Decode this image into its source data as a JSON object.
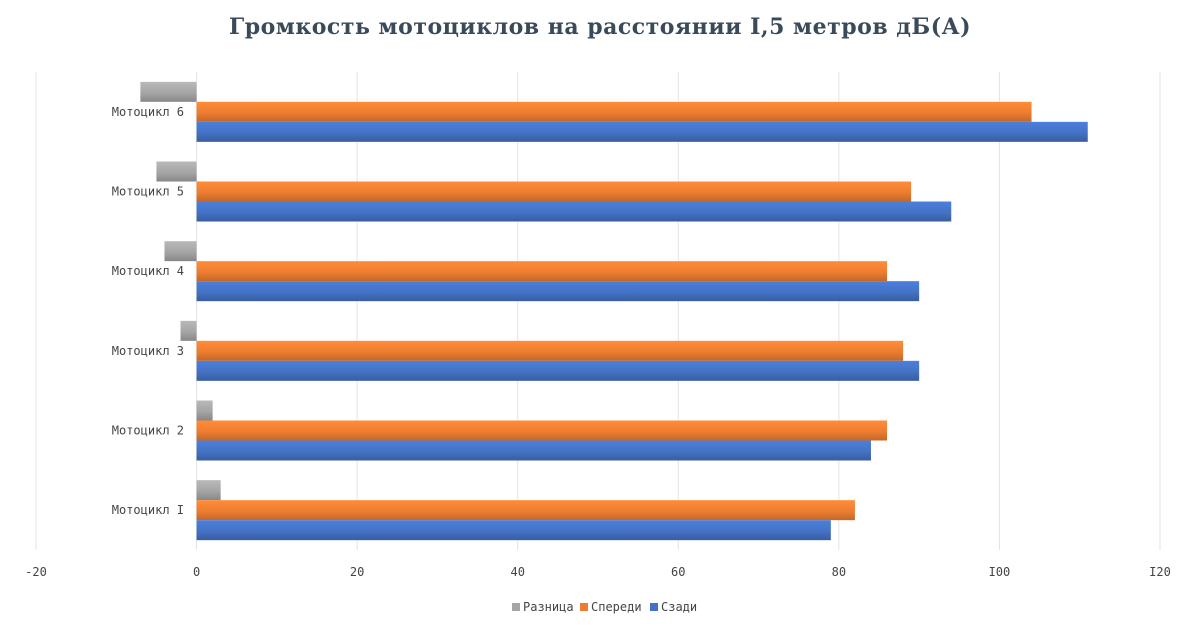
{
  "chart_data": {
    "type": "bar",
    "orientation": "horizontal",
    "title": "Громкость мотоциклов на расстоянии I,5 метров дБ(А)",
    "categories": [
      "Мотоцикл I",
      "Мотоцикл 2",
      "Мотоцикл 3",
      "Мотоцикл 4",
      "Мотоцикл 5",
      "Мотоцикл 6"
    ],
    "series": [
      {
        "name": "Разница",
        "color": "#a5a5a5",
        "values": [
          3,
          2,
          -2,
          -4,
          -5,
          -7
        ]
      },
      {
        "name": "Спереди",
        "color": "#ed7d31",
        "values": [
          82,
          86,
          88,
          86,
          89,
          104
        ]
      },
      {
        "name": "Сзади",
        "color": "#4472c4",
        "values": [
          79,
          84,
          90,
          90,
          94,
          111
        ]
      }
    ],
    "xlim": [
      -20,
      120
    ],
    "xticks": [
      "-20",
      "0",
      "20",
      "40",
      "60",
      "80",
      "I00",
      "I20"
    ],
    "grid": true,
    "legend_position": "bottom"
  }
}
